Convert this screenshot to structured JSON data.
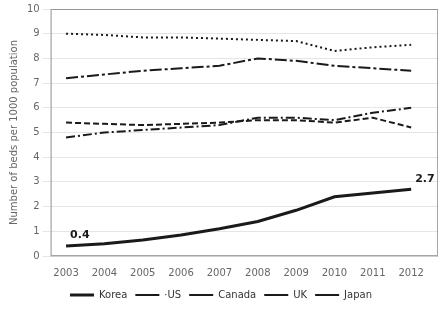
{
  "chart_data": {
    "type": "line",
    "x": [
      2003,
      2004,
      2005,
      2006,
      2007,
      2008,
      2009,
      2010,
      2011,
      2012
    ],
    "series": [
      {
        "name": "Korea",
        "color": "#1a1a1a",
        "line_style": "solid",
        "values": [
          0.4,
          0.5,
          0.65,
          0.85,
          1.1,
          1.4,
          1.85,
          2.4,
          2.55,
          2.7
        ]
      },
      {
        "name": "·US",
        "color": "#1a1a1a",
        "line_style": "dash-dot",
        "values": [
          4.8,
          5.0,
          5.1,
          5.2,
          5.3,
          5.6,
          5.6,
          5.5,
          5.8,
          6.0
        ]
      },
      {
        "name": "Canada",
        "color": "#1a1a1a",
        "line_style": "dashed",
        "values": [
          5.4,
          5.35,
          5.3,
          5.35,
          5.4,
          5.5,
          5.5,
          5.4,
          5.6,
          5.2
        ]
      },
      {
        "name": "UK",
        "color": "#1a1a1a",
        "line_style": "dotted",
        "values": [
          9.0,
          8.95,
          8.85,
          8.85,
          8.8,
          8.75,
          8.7,
          8.3,
          8.45,
          8.55
        ]
      },
      {
        "name": "Japan",
        "color": "#1a1a1a",
        "line_style": "long-dash-dot",
        "values": [
          7.2,
          7.35,
          7.5,
          7.6,
          7.7,
          8.0,
          7.9,
          7.7,
          7.6,
          7.5
        ]
      }
    ],
    "ylabel": "Number of beds per 1000 population",
    "xlim": [
      2002.6,
      2012.7
    ],
    "xticks": [
      2003,
      2004,
      2005,
      2006,
      2007,
      2008,
      2009,
      2010,
      2011,
      2012
    ],
    "ylim": [
      0,
      10
    ],
    "yticks": [
      0,
      1,
      2,
      3,
      4,
      5,
      6,
      7,
      8,
      9,
      10
    ],
    "grid": "y",
    "legend": "bottom",
    "annotations": [
      {
        "text": "0.4",
        "x": 2003,
        "y": 0.4
      },
      {
        "text": "2.7",
        "x": 2012,
        "y": 2.7
      }
    ]
  }
}
